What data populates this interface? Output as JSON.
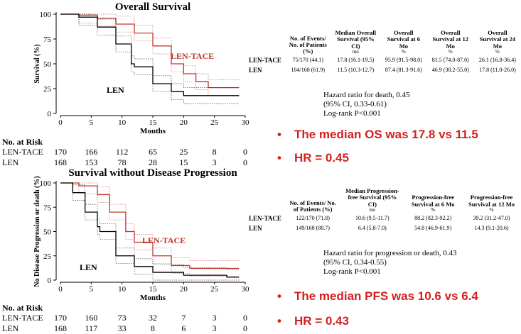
{
  "chart_data": [
    {
      "type": "line",
      "title": "Overall Survival",
      "xlabel": "Months",
      "ylabel": "Survival (%)",
      "xlim": [
        0,
        30
      ],
      "ylim": [
        0,
        100
      ],
      "xticks": [
        "0",
        "5",
        "10",
        "15",
        "20",
        "25",
        "30"
      ],
      "yticks": [
        "0",
        "25",
        "50",
        "75",
        "100"
      ],
      "series": [
        {
          "name": "LEN-TACE",
          "color": "#c0392b",
          "x": [
            0,
            3,
            6,
            9,
            12,
            15,
            18,
            20,
            22,
            24,
            27
          ],
          "y": [
            100,
            99,
            96,
            90,
            81,
            68,
            50,
            40,
            32,
            26,
            26
          ]
        },
        {
          "name": "LEN",
          "color": "#000000",
          "x": [
            0,
            3,
            6,
            9,
            11.5,
            12,
            15,
            18,
            20,
            27
          ],
          "y": [
            100,
            97,
            87,
            70,
            50,
            47,
            30,
            22,
            18,
            18
          ]
        }
      ],
      "risk": {
        "header": "No. at Risk",
        "rows": [
          {
            "label": "LEN-TACE",
            "values": [
              "170",
              "166",
              "112",
              "65",
              "25",
              "8",
              "0"
            ]
          },
          {
            "label": "LEN",
            "values": [
              "168",
              "153",
              "78",
              "28",
              "15",
              "3",
              "0"
            ]
          }
        ]
      },
      "table": {
        "headers": [
          {
            "h": "No. of Events/ No. of Patients (%)",
            "u": ""
          },
          {
            "h": "Median Overall Survival (95% CI)",
            "u": "mo"
          },
          {
            "h": "Overall Survival at 6 Mo",
            "u": "%"
          },
          {
            "h": "Overall Survival at 12 Mo",
            "u": "%"
          },
          {
            "h": "Overall Survival at 24 Mo",
            "u": "%"
          }
        ],
        "rows": [
          {
            "label": "LEN-TACE",
            "cells": [
              "75/170 (44.1)",
              "17.8 (16.1-19.5)",
              "95.9 (91.5-98.0)",
              "81.5 (74.0-87.0)",
              "26.1 (16.8-36.4)"
            ]
          },
          {
            "label": "LEN",
            "cells": [
              "104/168 (61.9)",
              "11.5 (10.3-12.7)",
              "87.4 (81.3-91.6)",
              "46.9 (38.2-55.0)",
              "17.8 (11.0-26.0)"
            ]
          }
        ]
      },
      "stats": [
        "Hazard ratio for death, 0.45",
        "(95% CI, 0.33-0.61)",
        "Log-rank P<0.001"
      ],
      "bullets": [
        "The median OS was 17.8 vs 11.5",
        "HR = 0.45"
      ]
    },
    {
      "type": "line",
      "title": "Survival without Disease Progression",
      "xlabel": "Months",
      "ylabel": "No Disease Progression or death (%)",
      "xlim": [
        0,
        30
      ],
      "ylim": [
        0,
        100
      ],
      "xticks": [
        "0",
        "5",
        "10",
        "15",
        "20",
        "25",
        "30"
      ],
      "yticks": [
        "0",
        "25",
        "50",
        "75",
        "100"
      ],
      "series": [
        {
          "name": "LEN-TACE",
          "color": "#c0392b",
          "x": [
            0,
            3,
            6,
            8,
            10.6,
            12,
            15,
            18,
            21,
            27
          ],
          "y": [
            100,
            97,
            88,
            70,
            50,
            39,
            25,
            15,
            12,
            12
          ]
        },
        {
          "name": "LEN",
          "color": "#000000",
          "x": [
            0,
            2,
            4,
            6,
            6.4,
            9,
            12,
            15,
            20,
            27
          ],
          "y": [
            100,
            90,
            70,
            55,
            50,
            25,
            14,
            8,
            5,
            3
          ]
        }
      ],
      "risk": {
        "header": "No. at Risk",
        "rows": [
          {
            "label": "LEN-TACE",
            "values": [
              "170",
              "160",
              "73",
              "32",
              "7",
              "3",
              "0"
            ]
          },
          {
            "label": "LEN",
            "values": [
              "168",
              "117",
              "33",
              "8",
              "6",
              "3",
              "0"
            ]
          }
        ]
      },
      "table": {
        "headers": [
          {
            "h": "No. of Events/ No. of Patients (%)",
            "u": ""
          },
          {
            "h": "Median Progression-free Survival (95% CI)",
            "u": "mo"
          },
          {
            "h": "Progression-free Survival at 6 Mo",
            "u": "%"
          },
          {
            "h": "Progression-free Survival at 12 Mo",
            "u": "%"
          }
        ],
        "rows": [
          {
            "label": "LEN-TACE",
            "cells": [
              "122/170 (71.8)",
              "10.6 (9.5-11.7)",
              "88.2 (82.3-92.2)",
              "39.2 (31.2-47.0)"
            ]
          },
          {
            "label": "LEN",
            "cells": [
              "149/168 (88.7)",
              "6.4 (5.8-7.0)",
              "54.8 (46.9-61.9)",
              "14.3 (9.1-20.6)"
            ]
          }
        ]
      },
      "stats": [
        "Hazard ratio for progression or death, 0.43",
        "(95% CI, 0.34-0.55)",
        "Log-rank P<0.001"
      ],
      "bullets": [
        "The median PFS was 10.6 vs 6.4",
        "HR = 0.43"
      ]
    }
  ],
  "bullet_char": "•"
}
